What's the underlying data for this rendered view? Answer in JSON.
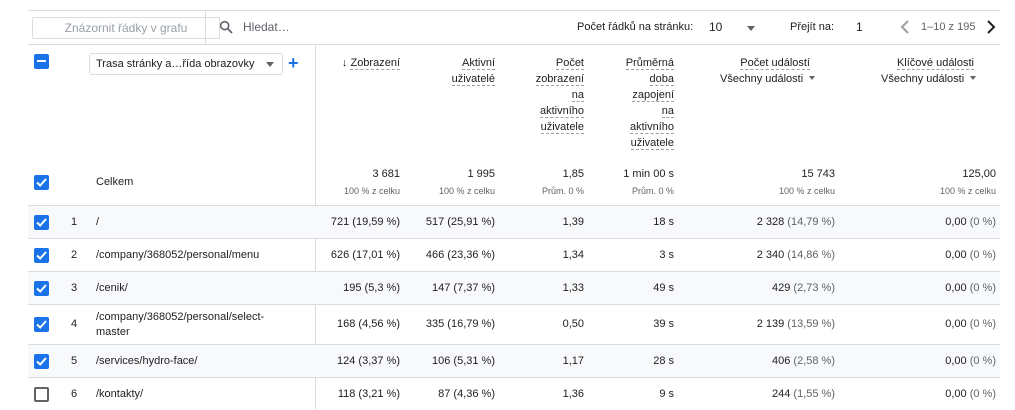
{
  "toolbar": {
    "plot_rows_label": "Znázornit řádky v grafu",
    "search_placeholder": "Hledat…",
    "rows_per_page_label": "Počet řádků na stránku:",
    "rows_per_page_value": "10",
    "goto_label": "Přejít na:",
    "goto_value": "1",
    "range_text": "1–10 z 195"
  },
  "header": {
    "dimension_select": "Trasa stránky a…řída obrazovky",
    "add_dimension": "+",
    "columns": [
      {
        "lines": [
          "Zobrazení"
        ],
        "sort": "↓"
      },
      {
        "lines": [
          "Aktivní",
          "uživatelé"
        ]
      },
      {
        "lines": [
          "Počet",
          "zobrazení",
          "na",
          "aktivního",
          "uživatele"
        ]
      },
      {
        "lines": [
          "Průměrná",
          "doba",
          "zapojení",
          "na",
          "aktivního",
          "uživatele"
        ]
      },
      {
        "lines": [
          "Počet událostí"
        ],
        "sub": "Všechny události"
      },
      {
        "lines": [
          "Klíčové události"
        ],
        "sub": "Všechny události"
      }
    ]
  },
  "totals": {
    "label": "Celkem",
    "values": [
      "3 681",
      "1 995",
      "1,85",
      "1 min 00 s",
      "15 743",
      "125,00"
    ],
    "subs": [
      "100 % z celku",
      "100 % z celku",
      "Prům. 0 %",
      "Prům. 0 %",
      "100 % z celku",
      "100 % z celku"
    ]
  },
  "rows": [
    {
      "idx": "1",
      "dim": "/",
      "views": "721",
      "views_pct": "(19,59 %)",
      "users": "517",
      "users_pct": "(25,91 %)",
      "vpu": "1,39",
      "eng": "18 s",
      "events": "2 328",
      "events_pct": "(14,79 %)",
      "key": "0,00",
      "key_pct": "(0 %)",
      "checked": true
    },
    {
      "idx": "2",
      "dim": "/company/368052/personal/menu",
      "views": "626",
      "views_pct": "(17,01 %)",
      "users": "466",
      "users_pct": "(23,36 %)",
      "vpu": "1,34",
      "eng": "3 s",
      "events": "2 340",
      "events_pct": "(14,86 %)",
      "key": "0,00",
      "key_pct": "(0 %)",
      "checked": true
    },
    {
      "idx": "3",
      "dim": "/cenik/",
      "views": "195",
      "views_pct": "(5,3 %)",
      "users": "147",
      "users_pct": "(7,37 %)",
      "vpu": "1,33",
      "eng": "49 s",
      "events": "429",
      "events_pct": "(2,73 %)",
      "key": "0,00",
      "key_pct": "(0 %)",
      "checked": true
    },
    {
      "idx": "4",
      "dim": "/company/368052/personal/select-master",
      "views": "168",
      "views_pct": "(4,56 %)",
      "users": "335",
      "users_pct": "(16,79 %)",
      "vpu": "0,50",
      "eng": "39 s",
      "events": "2 139",
      "events_pct": "(13,59 %)",
      "key": "0,00",
      "key_pct": "(0 %)",
      "checked": true
    },
    {
      "idx": "5",
      "dim": "/services/hydro-face/",
      "views": "124",
      "views_pct": "(3,37 %)",
      "users": "106",
      "users_pct": "(5,31 %)",
      "vpu": "1,17",
      "eng": "28 s",
      "events": "406",
      "events_pct": "(2,58 %)",
      "key": "0,00",
      "key_pct": "(0 %)",
      "checked": true
    },
    {
      "idx": "6",
      "dim": "/kontakty/",
      "views": "118",
      "views_pct": "(3,21 %)",
      "users": "87",
      "users_pct": "(4,36 %)",
      "vpu": "1,36",
      "eng": "9 s",
      "events": "244",
      "events_pct": "(1,55 %)",
      "key": "0,00",
      "key_pct": "(0 %)",
      "checked": false
    }
  ],
  "colors": {
    "accent": "#1a73e8",
    "border": "#dadce0",
    "shade": "#f8f9fa"
  }
}
